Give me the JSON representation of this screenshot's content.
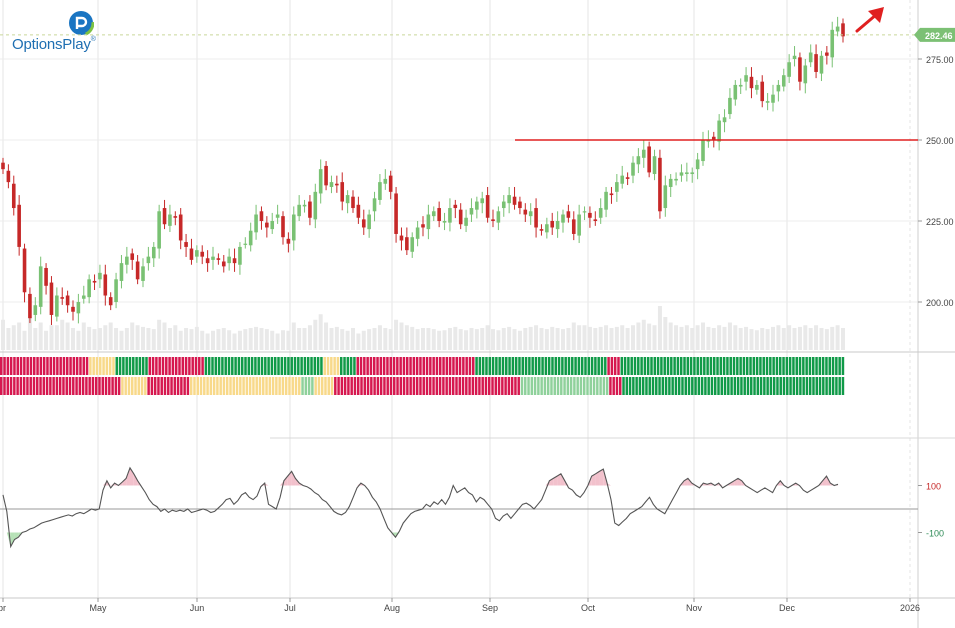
{
  "brand": {
    "name": "OptionsPlay",
    "trademark": "®"
  },
  "chart_data": [
    {
      "type": "candlestick",
      "y_ticks": [
        200,
        225,
        250,
        275
      ],
      "y_tick_labels": [
        "200.00",
        "225.00",
        "250.00",
        "275.00"
      ],
      "ylim": [
        183,
        295
      ],
      "last_price": 282.46,
      "last_price_label": "282.46",
      "resistance_level": 250,
      "x_month_labels": [
        "Apr",
        "May",
        "Jun",
        "Jul",
        "Aug",
        "Sep",
        "Oct",
        "Nov",
        "Dec",
        "2026"
      ],
      "closes": [
        241,
        237,
        229,
        217,
        203,
        195,
        199,
        211,
        205,
        196,
        202,
        201,
        199,
        197,
        200,
        202,
        207,
        206,
        209,
        202,
        199,
        207,
        212,
        214,
        213,
        207,
        211,
        214,
        217,
        228,
        224,
        227,
        226,
        219,
        217,
        213,
        216,
        214,
        212,
        214,
        213,
        211,
        214,
        212,
        217,
        218,
        222,
        227,
        225,
        223,
        225,
        227,
        220,
        218,
        227,
        230,
        230,
        226,
        234,
        241,
        236,
        237,
        236,
        231,
        233,
        229,
        226,
        223,
        227,
        232,
        237,
        238,
        234,
        221,
        219,
        216,
        220,
        223,
        223,
        227,
        228,
        225,
        225,
        229,
        229,
        224,
        226,
        229,
        231,
        232,
        226,
        225,
        228,
        231,
        233,
        230,
        229,
        227,
        228,
        223,
        222,
        224,
        223,
        225,
        227,
        226,
        221,
        227,
        228,
        226,
        225,
        229,
        234,
        233,
        237,
        239,
        238,
        243,
        245,
        247,
        240,
        245,
        228,
        236,
        238,
        238,
        240,
        240,
        240,
        244,
        250,
        250,
        250,
        256,
        257,
        263,
        267,
        267,
        270,
        266,
        267,
        262,
        262,
        264,
        267,
        270,
        274,
        276,
        268,
        273,
        277,
        271,
        276,
        276,
        284,
        285,
        282
      ],
      "volume_level": [
        0.55,
        0.4,
        0.45,
        0.5,
        0.35,
        0.6,
        0.4,
        0.5,
        0.35,
        0.45,
        0.45,
        0.55,
        0.5,
        0.4,
        0.35,
        0.5,
        0.42,
        0.38,
        0.4,
        0.45,
        0.5,
        0.4,
        0.35,
        0.4,
        0.5,
        0.45,
        0.42,
        0.4,
        0.38,
        0.55,
        0.5,
        0.4,
        0.45,
        0.35,
        0.4,
        0.38,
        0.42,
        0.35,
        0.3,
        0.35,
        0.38,
        0.4,
        0.36,
        0.3,
        0.35,
        0.38,
        0.4,
        0.42,
        0.4,
        0.38,
        0.35,
        0.3,
        0.36,
        0.35,
        0.5,
        0.4,
        0.4,
        0.45,
        0.55,
        0.65,
        0.5,
        0.4,
        0.42,
        0.38,
        0.35,
        0.4,
        0.3,
        0.35,
        0.38,
        0.4,
        0.45,
        0.4,
        0.38,
        0.55,
        0.5,
        0.45,
        0.42,
        0.38,
        0.4,
        0.4,
        0.38,
        0.35,
        0.36,
        0.4,
        0.42,
        0.38,
        0.36,
        0.4,
        0.38,
        0.4,
        0.45,
        0.38,
        0.36,
        0.4,
        0.42,
        0.38,
        0.35,
        0.4,
        0.42,
        0.45,
        0.4,
        0.38,
        0.42,
        0.4,
        0.38,
        0.4,
        0.5,
        0.45,
        0.45,
        0.42,
        0.4,
        0.42,
        0.45,
        0.4,
        0.42,
        0.45,
        0.4,
        0.45,
        0.5,
        0.55,
        0.48,
        0.45,
        0.8,
        0.6,
        0.5,
        0.45,
        0.42,
        0.45,
        0.4,
        0.45,
        0.5,
        0.42,
        0.4,
        0.45,
        0.42,
        0.5,
        0.45,
        0.4,
        0.42,
        0.38,
        0.36,
        0.4,
        0.38,
        0.42,
        0.45,
        0.4,
        0.45,
        0.4,
        0.42,
        0.45,
        0.4,
        0.45,
        0.4,
        0.38,
        0.42,
        0.45,
        0.4
      ],
      "signal_row_1": "RRRRRRRRRRRRRRRRRRRRRRRRRRRYYYYYYYYGGGGGGGGGGRRRRRRRRRRRRRRRRRGGGGGGGGGGGGGGGGGGGGGGGGGGGGGGGGGGGGYYYYYGGGGGRRRRRRRRRRRRRRRRRRRRRRRRRRRRRRRRRRRRGGGGGGGGGGGGGGGGGGGGGGGGGGGGGGGGGGGGGGGGRRRRGGGGGGGGGGGGGGGGGGGGGGGGGGGGGGGGGGGGGGGGGGGGGGGGGGGGGGGGGGGGGGGGGGGG",
      "signal_row_2": "RRRRRRRRRRRRRRRRRRRRRRRRRRRRRRRRRRRRRYYYYYYYYRRRRRRRRRRRRRYYYYYYYYYYYYYYYYYYYYYYYYYYYYYYYYYYLLLLYYYYYYRRRRRRRRRRRRRRRRRRRRRRRRRRRRRRRRRRRRRRRRRRRRRRRRRRRRRRRRRLLLLLLLLLLLLLLLLLLLLLLLLLLLRRRRGGGGGGGGGGGGGGGGGGGGGGGGGGGGGGGGGGGGGGGGGGGGGGGGGGGGGGGGGGGGGGGGGGGG",
      "oscillator_ticks": [
        100,
        -100
      ],
      "oscillator_tick_labels": [
        "100",
        "-100"
      ],
      "oscillator": [
        60,
        -10,
        -160,
        -130,
        -120,
        -100,
        -95,
        -85,
        -80,
        -70,
        -60,
        -55,
        -50,
        -45,
        -40,
        -35,
        -30,
        -25,
        -30,
        -20,
        -15,
        -20,
        -10,
        0,
        -5,
        0,
        80,
        120,
        90,
        110,
        100,
        115,
        130,
        175,
        150,
        120,
        95,
        70,
        40,
        20,
        10,
        -10,
        0,
        -15,
        -5,
        -10,
        -5,
        -10,
        0,
        -15,
        -10,
        -5,
        0,
        -5,
        -15,
        -10,
        5,
        20,
        40,
        45,
        20,
        35,
        60,
        70,
        50,
        40,
        55,
        95,
        110,
        20,
        10,
        0,
        50,
        120,
        140,
        160,
        130,
        110,
        100,
        95,
        85,
        70,
        60,
        40,
        30,
        10,
        -10,
        -20,
        -25,
        -15,
        10,
        50,
        90,
        110,
        100,
        80,
        50,
        30,
        0,
        -40,
        -80,
        -100,
        -120,
        -95,
        -60,
        -40,
        -20,
        -10,
        -5,
        0,
        20,
        10,
        30,
        20,
        40,
        20,
        50,
        100,
        70,
        80,
        90,
        70,
        60,
        30,
        50,
        40,
        20,
        0,
        -40,
        -50,
        -30,
        -20,
        -40,
        -20,
        0,
        20,
        25,
        15,
        0,
        20,
        40,
        80,
        120,
        130,
        140,
        150,
        120,
        90,
        80,
        60,
        50,
        70,
        100,
        140,
        150,
        160,
        170,
        110,
        40,
        -60,
        -70,
        -55,
        -40,
        -20,
        -10,
        0,
        10,
        30,
        50,
        20,
        0,
        -10,
        -20,
        10,
        40,
        70,
        100,
        120,
        130,
        110,
        100,
        90,
        110,
        105,
        110,
        100,
        110,
        90,
        100,
        110,
        120,
        130,
        120,
        100,
        90,
        80,
        70,
        80,
        90,
        80,
        70,
        100,
        120,
        100,
        90,
        100,
        110,
        100,
        80,
        70,
        80,
        90,
        100,
        120,
        140,
        110,
        100,
        105
      ]
    }
  ],
  "colors": {
    "up_candle": "#79c173",
    "down_candle": "#c62828",
    "resistance_line": "#e02020",
    "last_price_badge": "#7cc074",
    "arrow": "#e02020",
    "overbought_fill": "#f2c1cc",
    "oversold_fill": "#b7e2b7",
    "signal_red": "#d6184f",
    "signal_green": "#109a48",
    "signal_light_green": "#8fd19b",
    "signal_yellow": "#f8d98a"
  },
  "icons": {
    "logo": "optionsplay-logo-icon",
    "trend_arrow": "up-right-arrow-icon"
  }
}
